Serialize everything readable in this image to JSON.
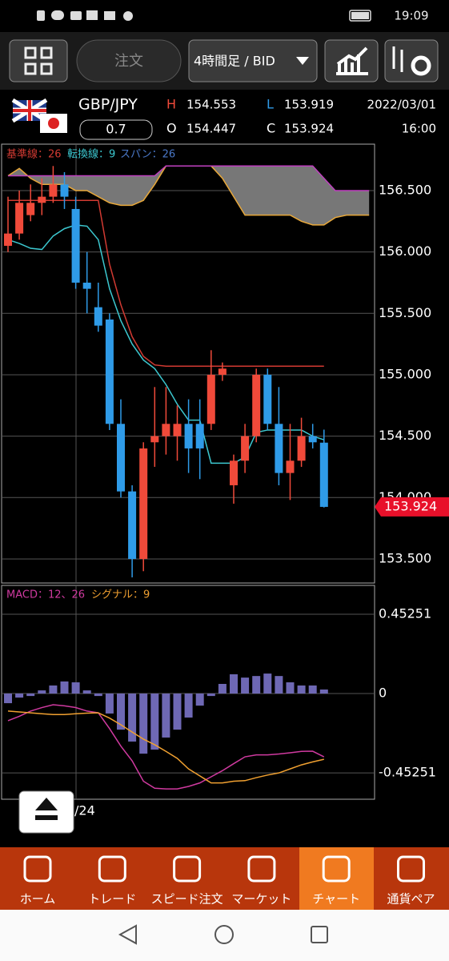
{
  "status_bar": {
    "time": "19:09"
  },
  "toolbar": {
    "order": "注文",
    "timeframe": "4時間足 / BID"
  },
  "quote": {
    "symbol": "GBP/JPY",
    "spread": "0.7",
    "high_label": "H",
    "high": "154.553",
    "open_label": "O",
    "open": "154.447",
    "low_label": "L",
    "low": "153.919",
    "close_label": "C",
    "close": "153.924",
    "date": "2022/03/01",
    "time": "16:00"
  },
  "chart_data": [
    {
      "type": "candlestick",
      "up_color": "#f04a3a",
      "down_color": "#2f9be8",
      "open": [
        156.05,
        156.15,
        156.3,
        156.4,
        156.45,
        156.55,
        156.35,
        155.75,
        155.55,
        155.45,
        154.6,
        154.05,
        153.5,
        154.45,
        154.5,
        154.5,
        154.6,
        154.6,
        154.6,
        155.0,
        154.1,
        154.3,
        154.5,
        155.0,
        154.6,
        154.2,
        154.3,
        154.5,
        154.447
      ],
      "high": [
        156.45,
        156.5,
        156.55,
        156.6,
        156.7,
        156.65,
        156.45,
        156.0,
        155.75,
        155.5,
        154.8,
        154.1,
        154.45,
        154.9,
        154.9,
        154.75,
        154.8,
        154.8,
        155.2,
        155.1,
        154.35,
        154.6,
        155.05,
        155.05,
        154.9,
        154.6,
        154.65,
        154.6,
        154.553
      ],
      "low": [
        156.0,
        156.1,
        156.25,
        156.3,
        156.4,
        156.35,
        155.7,
        155.5,
        155.35,
        154.55,
        154.0,
        153.35,
        153.4,
        154.25,
        154.35,
        154.3,
        154.2,
        154.15,
        154.55,
        154.95,
        153.95,
        154.2,
        154.45,
        154.55,
        154.1,
        153.98,
        154.25,
        154.4,
        153.919
      ],
      "close": [
        156.15,
        156.4,
        156.4,
        156.45,
        156.55,
        156.45,
        155.75,
        155.7,
        155.4,
        154.6,
        154.05,
        153.5,
        154.4,
        154.5,
        154.6,
        154.6,
        154.4,
        154.4,
        155.0,
        155.05,
        154.3,
        154.5,
        155.0,
        154.6,
        154.2,
        154.3,
        154.5,
        154.45,
        153.924
      ],
      "series": [
        {
          "name": "基準線：26",
          "color": "#d23a32",
          "values": [
            156.42,
            156.42,
            156.42,
            156.42,
            156.42,
            156.42,
            156.42,
            156.42,
            156.42,
            155.9,
            155.57,
            155.31,
            155.15,
            155.08,
            155.07,
            155.07,
            155.07,
            155.07,
            155.07,
            155.07,
            155.07,
            155.07,
            155.07,
            155.07,
            155.07,
            155.07,
            155.07,
            155.07,
            155.07
          ]
        },
        {
          "name": "転換線：9",
          "color": "#3cc8d0",
          "values": [
            156.1,
            156.07,
            156.03,
            156.02,
            156.13,
            156.19,
            156.22,
            156.21,
            156.1,
            155.7,
            155.44,
            155.25,
            155.12,
            155.05,
            154.92,
            154.76,
            154.63,
            154.63,
            154.28,
            154.28,
            154.28,
            154.33,
            154.53,
            154.55,
            154.55,
            154.55,
            154.55,
            154.5,
            154.47
          ]
        }
      ],
      "span": {
        "name": "スパン：26",
        "color": "#4a78c8",
        "cloud_color": "#777777",
        "a": {
          "color": "#e8a83a",
          "values": [
            156.62,
            156.68,
            156.6,
            156.55,
            156.55,
            156.55,
            156.5,
            156.5,
            156.45,
            156.4,
            156.38,
            156.38,
            156.42,
            156.55,
            156.7,
            156.7,
            156.7,
            156.7,
            156.7,
            156.6,
            156.45,
            156.3,
            156.3,
            156.3,
            156.3,
            156.3,
            156.25,
            156.22,
            156.22,
            156.28,
            156.3,
            156.3,
            156.3
          ]
        },
        "b": {
          "color": "#c040c0",
          "values": [
            156.62,
            156.62,
            156.62,
            156.62,
            156.62,
            156.62,
            156.62,
            156.62,
            156.62,
            156.62,
            156.62,
            156.62,
            156.62,
            156.62,
            156.7,
            156.7,
            156.7,
            156.7,
            156.7,
            156.7,
            156.7,
            156.7,
            156.7,
            156.7,
            156.7,
            156.7,
            156.7,
            156.7,
            156.6,
            156.5,
            156.5,
            156.5,
            156.5
          ]
        }
      },
      "ylim": [
        153.304,
        156.878
      ],
      "yticks": [
        {
          "value": 153.5,
          "label": "153.500"
        },
        {
          "value": 154,
          "label": "154.000"
        },
        {
          "value": 154.5,
          "label": "154.500"
        },
        {
          "value": 155,
          "label": "155.000"
        },
        {
          "value": 155.5,
          "label": "155.500"
        },
        {
          "value": 156,
          "label": "156.000"
        },
        {
          "value": 156.5,
          "label": "156.500"
        }
      ],
      "grid": true,
      "last_price": 153.924,
      "last_price_color": "#e8102a"
    },
    {
      "type": "macd",
      "ylim": [
        -0.603,
        0.617
      ],
      "yticks": [
        0.45251,
        0,
        -0.45251
      ],
      "grid": true,
      "histogram": {
        "color": "#6e68b4",
        "values": [
          -0.055,
          -0.023,
          -0.014,
          0.018,
          0.046,
          0.069,
          0.064,
          0.018,
          -0.014,
          -0.114,
          -0.206,
          -0.274,
          -0.343,
          -0.32,
          -0.251,
          -0.206,
          -0.137,
          -0.069,
          -0.014,
          0.055,
          0.11,
          0.091,
          0.1,
          0.114,
          0.1,
          0.064,
          0.046,
          0.046,
          0.023
        ]
      },
      "series": [
        {
          "name": "MACD：12、26",
          "color": "#d03aa0",
          "values": [
            -0.155,
            -0.13,
            -0.1,
            -0.08,
            -0.064,
            -0.07,
            -0.08,
            -0.1,
            -0.11,
            -0.2,
            -0.3,
            -0.384,
            -0.5,
            -0.54,
            -0.544,
            -0.544,
            -0.53,
            -0.51,
            -0.475,
            -0.44,
            -0.4,
            -0.361,
            -0.35,
            -0.35,
            -0.345,
            -0.338,
            -0.33,
            -0.329,
            -0.361
          ]
        },
        {
          "name": "シグナル：9",
          "color": "#f0a030",
          "values": [
            -0.1,
            -0.105,
            -0.11,
            -0.115,
            -0.12,
            -0.12,
            -0.115,
            -0.112,
            -0.11,
            -0.14,
            -0.178,
            -0.22,
            -0.26,
            -0.292,
            -0.33,
            -0.37,
            -0.43,
            -0.47,
            -0.51,
            -0.51,
            -0.5,
            -0.497,
            -0.48,
            -0.465,
            -0.453,
            -0.43,
            -0.407,
            -0.39,
            -0.375
          ]
        }
      ]
    }
  ],
  "date_fragment": "/24",
  "nav": [
    "ホーム",
    "トレード",
    "スピード注文",
    "マーケット",
    "チャート",
    "通貨ペア"
  ]
}
